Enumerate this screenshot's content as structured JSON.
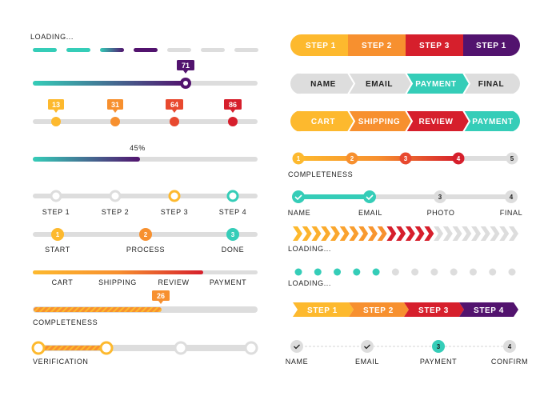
{
  "colors": {
    "yellow": "#FDB92E",
    "orange": "#F7902F",
    "redorange": "#E8492F",
    "red": "#D61F2C",
    "purple": "#52136E",
    "teal": "#35CDB8",
    "gray": "#DDDDDD"
  },
  "left": {
    "dash_loader": {
      "label": "LOADING...",
      "total": 7,
      "filled": 4
    },
    "slider": {
      "value": "71",
      "percent": 71
    },
    "markers": [
      {
        "value": "13"
      },
      {
        "value": "31"
      },
      {
        "value": "64"
      },
      {
        "value": "86"
      }
    ],
    "percent_bar": {
      "label": "45%",
      "percent": 45
    },
    "steps": [
      "STEP 1",
      "STEP 2",
      "STEP 3",
      "STEP 4"
    ],
    "numbered": [
      {
        "n": "1",
        "label": "START"
      },
      {
        "n": "2",
        "label": "PROCESS"
      },
      {
        "n": "3",
        "label": "DONE"
      }
    ],
    "checkout": {
      "labels": [
        "CART",
        "SHIPPING",
        "REVIEW",
        "PAYMENT"
      ],
      "percent": 75
    },
    "completeness": {
      "value": "26",
      "label": "COMPLETENESS",
      "percent": 57
    },
    "verification": {
      "label": "VERIFICATION",
      "completed": 2,
      "total": 4
    }
  },
  "right": {
    "pill_steps": [
      "STEP 1",
      "STEP 2",
      "STEP 3",
      "STEP 1"
    ],
    "form_steps": {
      "labels": [
        "NAME",
        "EMAIL",
        "PAYMENT",
        "FINAL"
      ],
      "active": 2
    },
    "cart_steps": [
      "CART",
      "SHIPPING",
      "REVIEW",
      "PAYMENT"
    ],
    "completeness": {
      "nums": [
        "1",
        "2",
        "3",
        "4",
        "5"
      ],
      "label": "COMPLETENESS",
      "completed": 4
    },
    "check_steps": {
      "items": [
        {
          "n": "",
          "label": "NAME"
        },
        {
          "n": "",
          "label": "EMAIL"
        },
        {
          "n": "3",
          "label": "PHOTO"
        },
        {
          "n": "4",
          "label": "FINAL"
        }
      ],
      "completed": 2
    },
    "chevron_loader": {
      "label": "LOADING...",
      "total": 24,
      "filled": 15
    },
    "dot_loader": {
      "label": "LOADING...",
      "total": 12,
      "filled": 5
    },
    "arrow_steps": [
      "STEP 1",
      "STEP 2",
      "STEP 3",
      "STEP 4"
    ],
    "dashed_steps": {
      "items": [
        {
          "n": "",
          "label": "NAME"
        },
        {
          "n": "",
          "label": "EMAIL"
        },
        {
          "n": "3",
          "label": "PAYMENT"
        },
        {
          "n": "4",
          "label": "CONFIRM"
        }
      ],
      "active": 2
    }
  }
}
